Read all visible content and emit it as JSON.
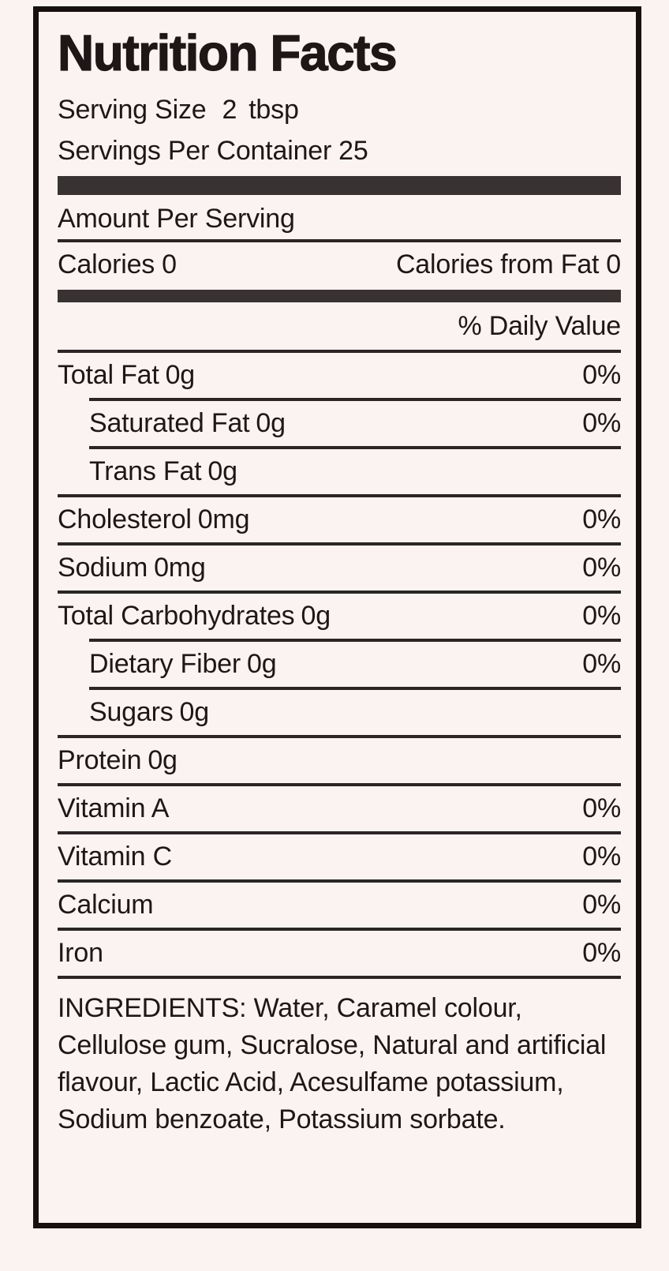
{
  "colors": {
    "background": "#fbf3f1",
    "ink": "#1e1717",
    "bar": "#383233",
    "rule": "#2b2526",
    "border": "#171010"
  },
  "label": {
    "title": "Nutrition Facts",
    "serving_size_label": "Serving Size",
    "serving_size_value": "2",
    "serving_size_unit": "tbsp",
    "servings_per_container_label": "Servings Per Container",
    "servings_per_container_value": "25",
    "amount_per_serving": "Amount Per Serving",
    "calories_label": "Calories",
    "calories_value": "0",
    "calories_from_fat_label": "Calories from Fat",
    "calories_from_fat_value": "0",
    "daily_value_header": "% Daily Value",
    "nutrients": [
      {
        "name": "Total Fat",
        "amount": "0g",
        "dv": "0%"
      },
      {
        "name": "Saturated Fat",
        "amount": "0g",
        "dv": "0%"
      },
      {
        "name": "Trans Fat",
        "amount": "0g",
        "dv": ""
      },
      {
        "name": "Cholesterol",
        "amount": "0mg",
        "dv": "0%"
      },
      {
        "name": "Sodium",
        "amount": "0mg",
        "dv": "0%"
      },
      {
        "name": "Total Carbohydrates",
        "amount": "0g",
        "dv": "0%"
      },
      {
        "name": "Dietary Fiber",
        "amount": "0g",
        "dv": "0%"
      },
      {
        "name": "Sugars",
        "amount": "0g",
        "dv": ""
      },
      {
        "name": "Protein",
        "amount": "0g",
        "dv": ""
      },
      {
        "name": "Vitamin A",
        "amount": "",
        "dv": "0%"
      },
      {
        "name": "Vitamin C",
        "amount": "",
        "dv": "0%"
      },
      {
        "name": "Calcium",
        "amount": "",
        "dv": "0%"
      },
      {
        "name": "Iron",
        "amount": "",
        "dv": "0%"
      }
    ],
    "ingredients": "INGREDIENTS: Water, Caramel colour, Cellulose gum, Sucralose, Natural and artificial flavour, Lactic Acid, Acesulfame potassium, Sodium benzoate, Potassium sorbate."
  }
}
